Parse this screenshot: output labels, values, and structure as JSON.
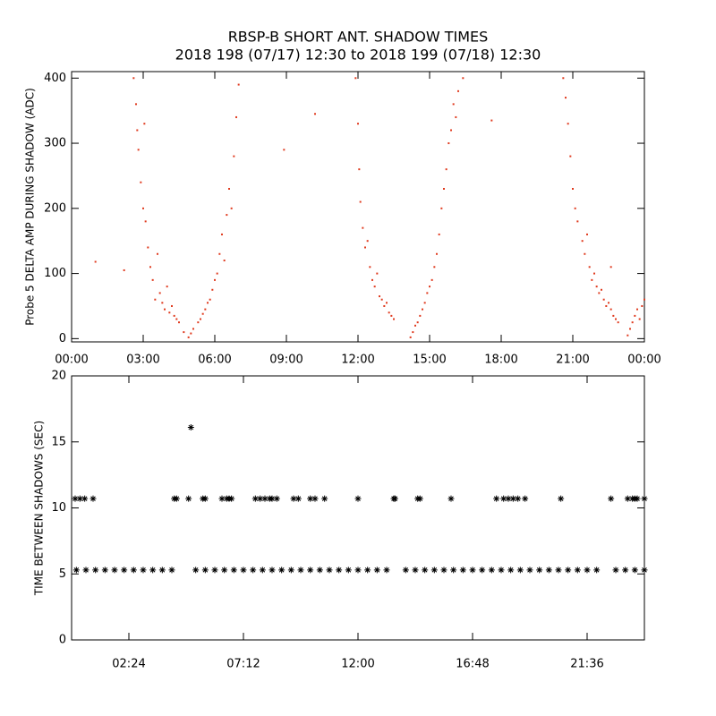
{
  "chart_data": [
    {
      "type": "scatter",
      "title": "RBSP-B SHORT ANT. SHADOW TIMES",
      "subtitle": "2018 198 (07/17) 12:30 to 2018 199 (07/18) 12:30",
      "ylabel": "Probe 5 DELTA AMP DURING SHADOW (ADC)",
      "marker": "dot",
      "xlim": [
        0,
        24
      ],
      "ylim": [
        -5,
        410
      ],
      "xticks": [
        {
          "value": 0,
          "label": "00:00"
        },
        {
          "value": 3,
          "label": "03:00"
        },
        {
          "value": 6,
          "label": "06:00"
        },
        {
          "value": 9,
          "label": "09:00"
        },
        {
          "value": 12,
          "label": "12:00"
        },
        {
          "value": 15,
          "label": "15:00"
        },
        {
          "value": 18,
          "label": "18:00"
        },
        {
          "value": 21,
          "label": "21:00"
        },
        {
          "value": 24,
          "label": "00:00"
        }
      ],
      "yticks": [
        0,
        100,
        200,
        300,
        400
      ],
      "series": [
        {
          "color": "#e03a1e",
          "x": [
            2.6,
            2.7,
            2.75,
            2.8,
            2.9,
            3.0,
            3.05,
            3.1,
            3.2,
            3.3,
            3.4,
            3.5,
            3.6,
            3.7,
            3.8,
            3.9,
            4.0,
            4.1,
            4.2,
            4.3,
            4.4,
            4.5,
            4.9,
            5.0,
            5.1,
            5.3,
            5.4,
            5.5,
            5.6,
            5.7,
            5.8,
            5.9,
            6.0,
            6.1,
            6.2,
            6.3,
            6.4,
            6.5,
            6.6,
            6.7,
            6.8,
            6.9,
            7.0,
            1.0,
            2.2,
            8.9,
            10.2,
            17.6,
            4.7,
            22.6,
            11.9,
            12.0,
            12.05,
            12.1,
            12.2,
            12.3,
            12.4,
            12.5,
            12.6,
            12.7,
            12.8,
            12.9,
            13.0,
            13.1,
            13.2,
            13.3,
            13.4,
            13.5,
            14.2,
            14.3,
            14.4,
            14.5,
            14.6,
            14.7,
            14.8,
            14.9,
            15.0,
            15.1,
            15.2,
            15.3,
            15.4,
            15.5,
            15.6,
            15.7,
            15.8,
            15.9,
            16.0,
            16.1,
            16.2,
            16.4,
            20.6,
            20.7,
            20.8,
            20.9,
            21.0,
            21.1,
            21.2,
            21.4,
            21.5,
            21.6,
            21.7,
            21.8,
            21.9,
            22.0,
            22.1,
            22.2,
            22.3,
            22.4,
            22.5,
            22.6,
            22.7,
            22.8,
            22.9,
            23.3,
            23.4,
            23.5,
            23.6,
            23.7,
            23.8,
            23.9,
            24.0
          ],
          "values": [
            400,
            360,
            320,
            290,
            240,
            200,
            330,
            180,
            140,
            110,
            90,
            60,
            130,
            70,
            55,
            45,
            80,
            40,
            50,
            35,
            30,
            25,
            2,
            8,
            15,
            25,
            30,
            38,
            45,
            55,
            60,
            75,
            90,
            100,
            130,
            160,
            120,
            190,
            230,
            200,
            280,
            340,
            390,
            118,
            105,
            290,
            345,
            335,
            10,
            110,
            400,
            330,
            260,
            210,
            170,
            140,
            150,
            110,
            90,
            80,
            100,
            65,
            60,
            50,
            55,
            40,
            35,
            30,
            2,
            10,
            20,
            25,
            35,
            45,
            55,
            70,
            80,
            90,
            110,
            130,
            160,
            200,
            230,
            260,
            300,
            320,
            360,
            340,
            380,
            400,
            400,
            370,
            330,
            280,
            230,
            200,
            180,
            150,
            130,
            160,
            110,
            90,
            100,
            80,
            70,
            75,
            60,
            50,
            55,
            45,
            35,
            30,
            25,
            5,
            15,
            25,
            35,
            45,
            30,
            50,
            60
          ]
        }
      ]
    },
    {
      "type": "scatter",
      "ylabel": "TIME BETWEEN SHADOWS (SEC)",
      "marker": "asterisk",
      "xlim": [
        0,
        24
      ],
      "ylim": [
        0,
        20
      ],
      "xticks": [
        {
          "value": 2.4,
          "label": "02:24"
        },
        {
          "value": 7.2,
          "label": "07:12"
        },
        {
          "value": 12,
          "label": "12:00"
        },
        {
          "value": 16.8,
          "label": "16:48"
        },
        {
          "value": 21.6,
          "label": "21:36"
        }
      ],
      "yticks": [
        0,
        5,
        10,
        15,
        20
      ],
      "series": [
        {
          "color": "#000000",
          "x": [
            0.2,
            0.6,
            1.0,
            1.4,
            1.8,
            2.2,
            2.6,
            3.0,
            3.4,
            3.8,
            4.2,
            5.2,
            5.6,
            6.0,
            6.4,
            6.8,
            7.2,
            7.6,
            8.0,
            8.4,
            8.8,
            9.2,
            9.6,
            10.0,
            10.4,
            10.8,
            11.2,
            11.6,
            12.0,
            12.4,
            12.8,
            13.2,
            14.0,
            14.4,
            14.8,
            15.2,
            15.6,
            16.0,
            16.4,
            16.8,
            17.2,
            17.6,
            18.0,
            18.4,
            18.8,
            19.2,
            19.6,
            20.0,
            20.4,
            20.8,
            21.2,
            21.6,
            22.0,
            22.8,
            23.2,
            23.6,
            24.0
          ],
          "values": [
            5.3,
            5.3,
            5.3,
            5.3,
            5.3,
            5.3,
            5.3,
            5.3,
            5.3,
            5.3,
            5.3,
            5.3,
            5.3,
            5.3,
            5.3,
            5.3,
            5.3,
            5.3,
            5.3,
            5.3,
            5.3,
            5.3,
            5.3,
            5.3,
            5.3,
            5.3,
            5.3,
            5.3,
            5.3,
            5.3,
            5.3,
            5.3,
            5.3,
            5.3,
            5.3,
            5.3,
            5.3,
            5.3,
            5.3,
            5.3,
            5.3,
            5.3,
            5.3,
            5.3,
            5.3,
            5.3,
            5.3,
            5.3,
            5.3,
            5.3,
            5.3,
            5.3,
            5.3,
            5.3,
            5.3,
            5.3,
            5.3
          ]
        },
        {
          "color": "#000000",
          "x": [
            0.15,
            0.35,
            0.55,
            0.9,
            4.3,
            4.4,
            4.9,
            5.5,
            5.6,
            6.3,
            6.5,
            6.6,
            6.7,
            7.7,
            7.9,
            8.1,
            8.3,
            8.4,
            8.6,
            9.3,
            9.5,
            10.0,
            10.2,
            10.6,
            12.0,
            13.5,
            13.55,
            14.5,
            14.6,
            15.9,
            17.8,
            18.1,
            18.3,
            18.5,
            18.7,
            19.0,
            20.5,
            22.6,
            23.3,
            23.5,
            23.6,
            23.7,
            24.0
          ],
          "values": [
            10.7,
            10.7,
            10.7,
            10.7,
            10.7,
            10.7,
            10.7,
            10.7,
            10.7,
            10.7,
            10.7,
            10.7,
            10.7,
            10.7,
            10.7,
            10.7,
            10.7,
            10.7,
            10.7,
            10.7,
            10.7,
            10.7,
            10.7,
            10.7,
            10.7,
            10.7,
            10.7,
            10.7,
            10.7,
            10.7,
            10.7,
            10.7,
            10.7,
            10.7,
            10.7,
            10.7,
            10.7,
            10.7,
            10.7,
            10.7,
            10.7,
            10.7,
            10.7
          ]
        },
        {
          "color": "#000000",
          "x": [
            5.0
          ],
          "values": [
            16.1
          ]
        }
      ]
    }
  ]
}
